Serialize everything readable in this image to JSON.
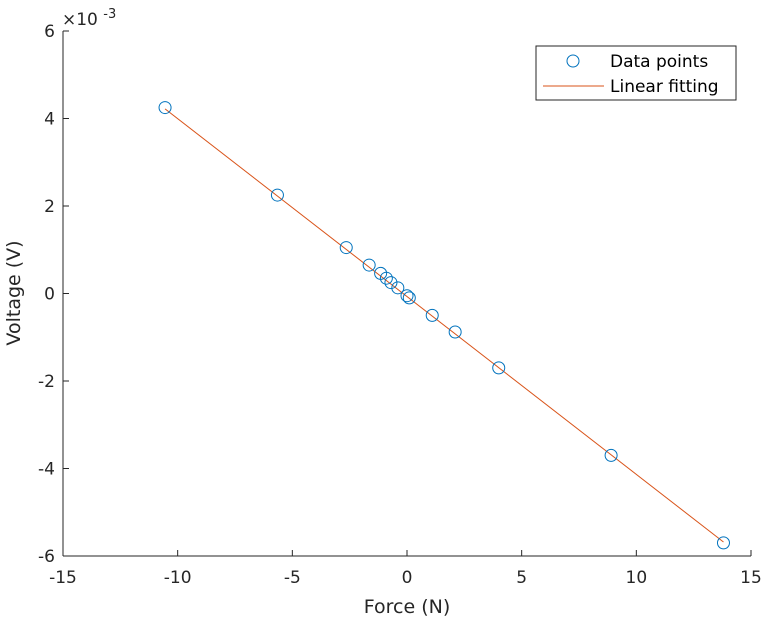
{
  "chart_data": {
    "type": "scatter",
    "xlabel": "Force (N)",
    "ylabel": "Voltage (V)",
    "exponent_label": "×10",
    "exponent_power": "-3",
    "xlim": [
      -15,
      15
    ],
    "ylim": [
      -0.006,
      0.006
    ],
    "x_ticks": [
      -15,
      -10,
      -5,
      0,
      5,
      10,
      15
    ],
    "x_tick_labels": [
      "-15",
      "-10",
      "-5",
      "0",
      "5",
      "10",
      "15"
    ],
    "y_ticks": [
      -0.006,
      -0.004,
      -0.002,
      0,
      0.002,
      0.004,
      0.006
    ],
    "y_tick_labels": [
      "-6",
      "-4",
      "-2",
      "0",
      "2",
      "4",
      "6"
    ],
    "grid": false,
    "legend_position": "top-right",
    "colors": {
      "points": "#0072BD",
      "fit": "#D95319",
      "axes": "#262626"
    },
    "series": [
      {
        "name": "Data points",
        "kind": "scatter",
        "x": [
          -10.55,
          -5.65,
          -2.65,
          -1.65,
          -1.15,
          -0.9,
          -0.7,
          -0.4,
          0.0,
          0.1,
          1.1,
          2.1,
          4.0,
          8.9,
          13.8
        ],
        "y": [
          0.00425,
          0.00225,
          0.00105,
          0.00065,
          0.00046,
          0.00035,
          0.00025,
          0.00013,
          -5e-05,
          -0.0001,
          -0.0005,
          -0.00088,
          -0.0017,
          -0.0037,
          -0.0057
        ]
      },
      {
        "name": "Linear fitting",
        "kind": "line",
        "x": [
          -10.55,
          13.8
        ],
        "y": [
          0.00422,
          -0.00568
        ]
      }
    ]
  }
}
